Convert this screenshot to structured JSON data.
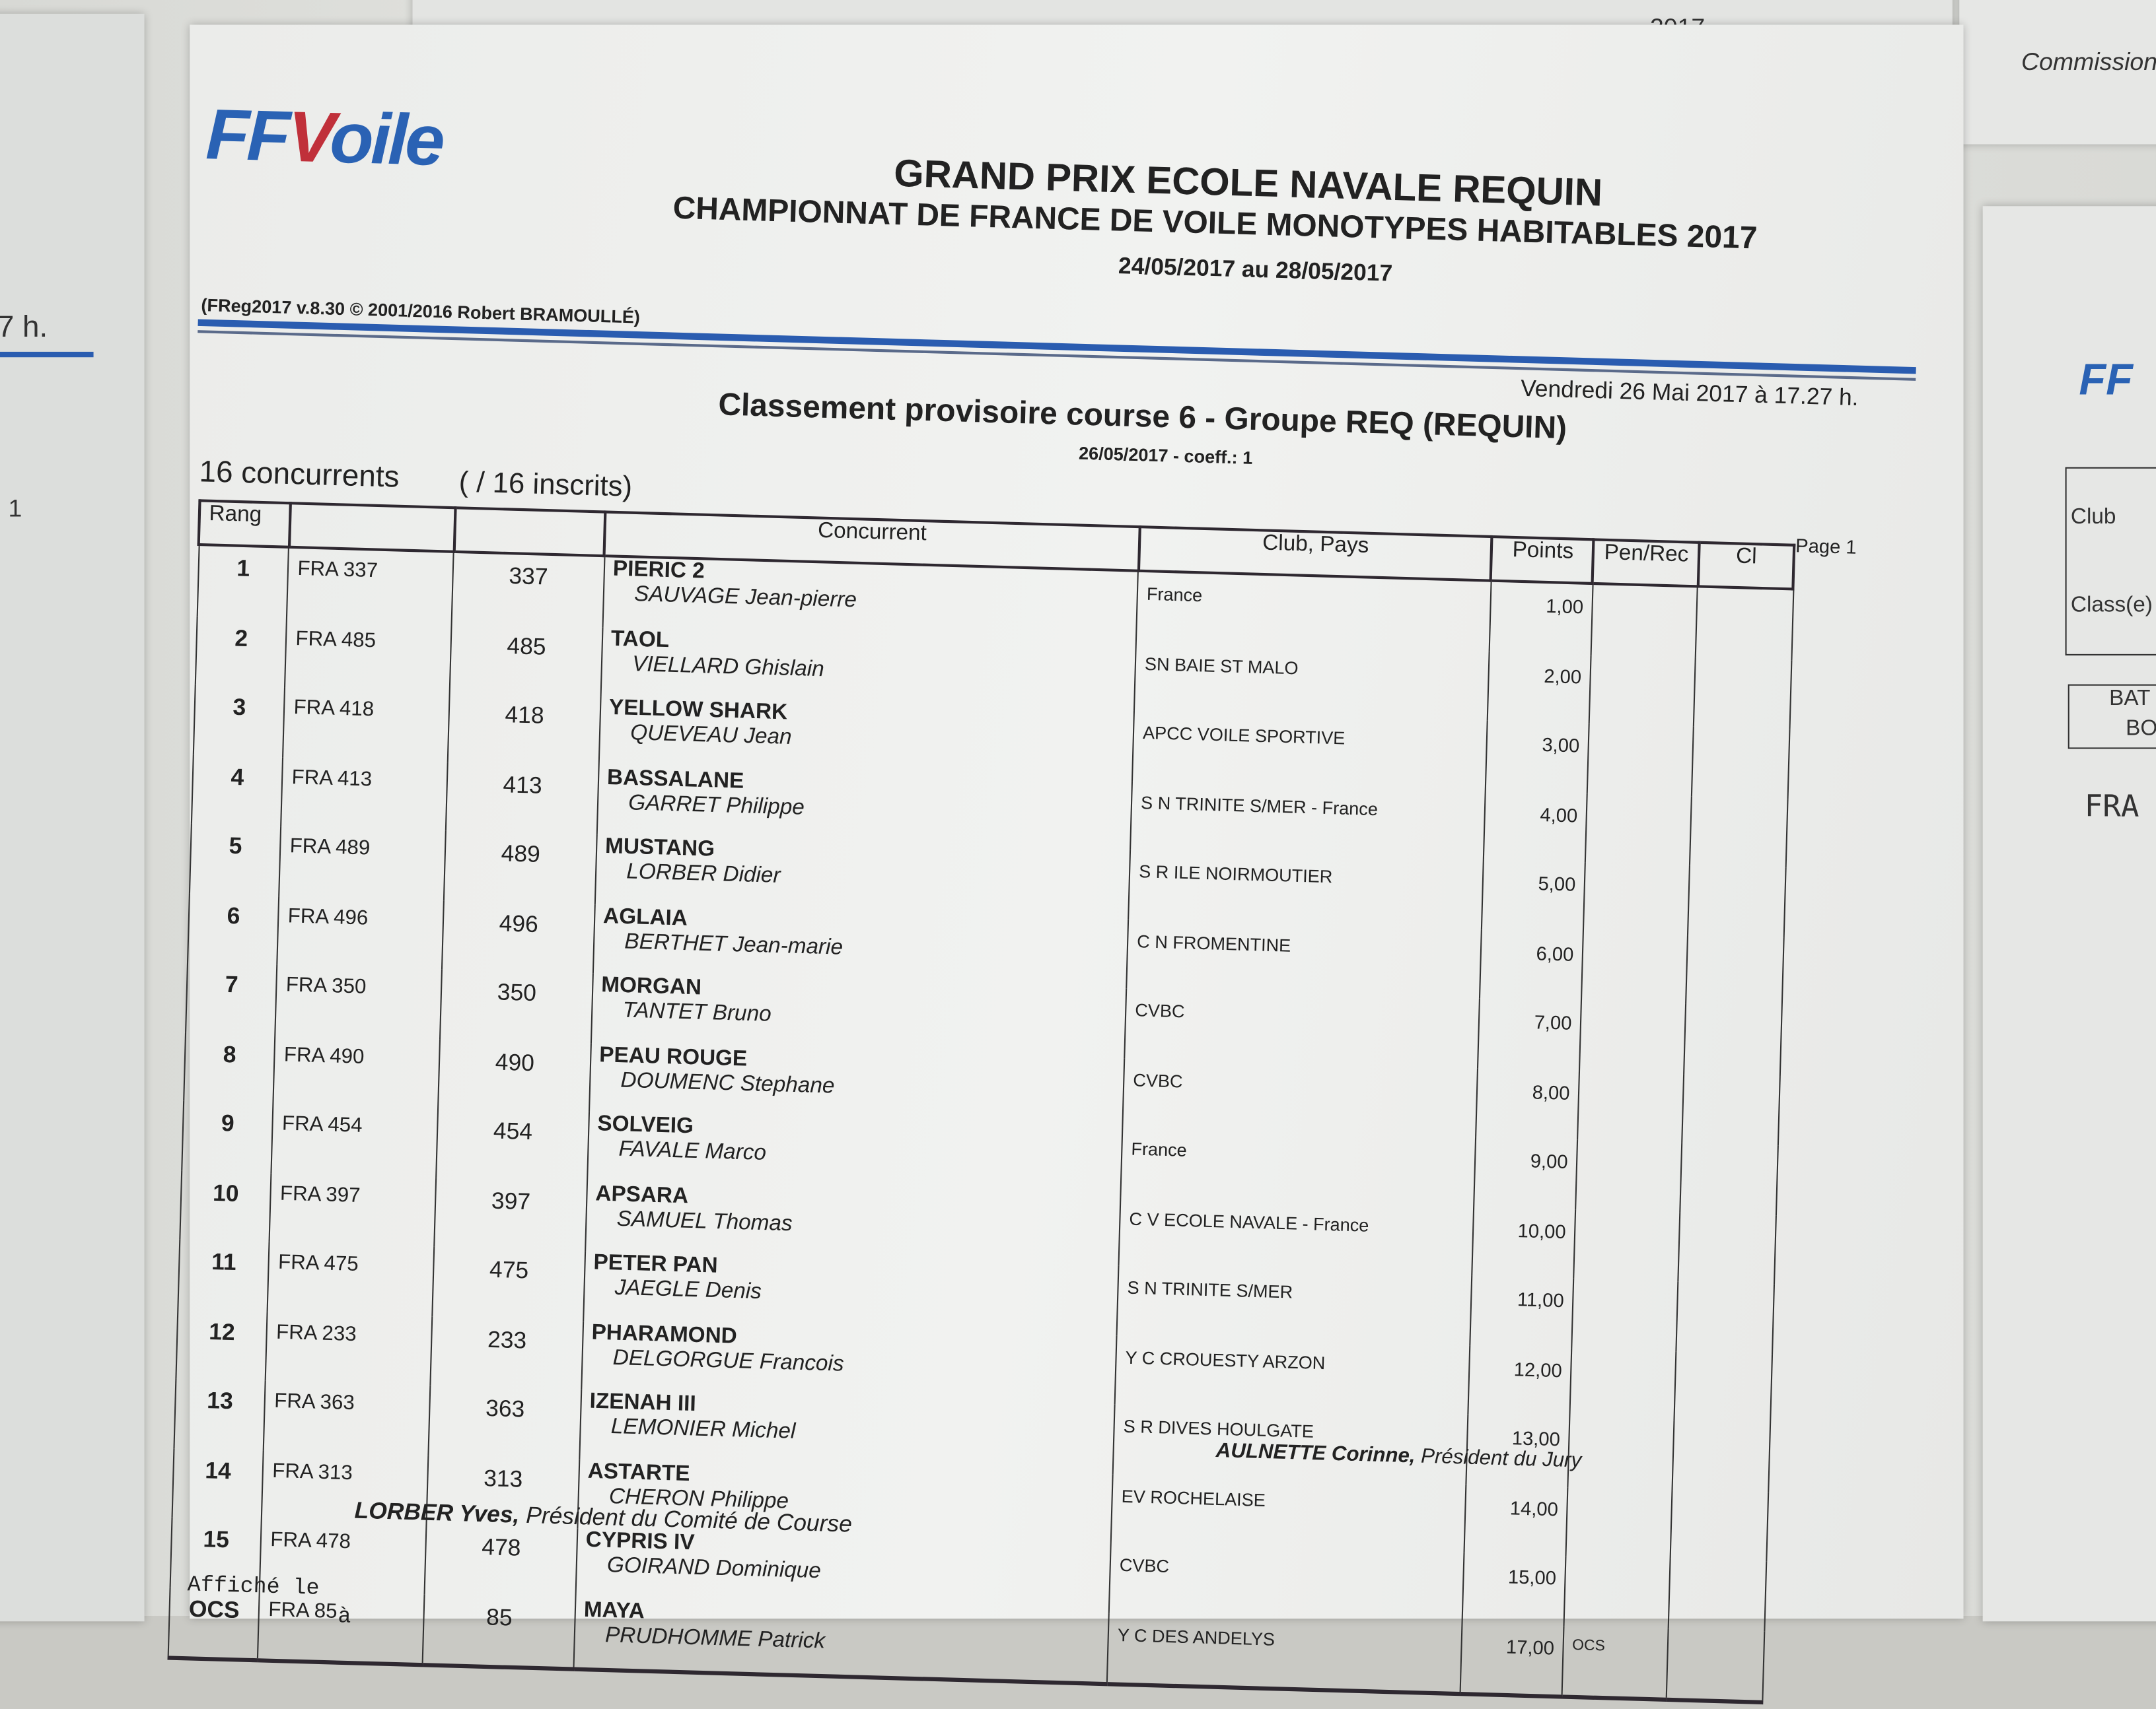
{
  "background_sheets": {
    "left": {
      "text1": "7 h.",
      "text2": "1"
    },
    "top": {
      "year": "2017"
    },
    "right_top": {
      "text": "Commission"
    },
    "right": {
      "logo": "FF",
      "club_label": "Club",
      "class_label": "Class(e)",
      "col1": "BAT",
      "col2": "BO",
      "handwritten": "FRA"
    }
  },
  "header": {
    "logo": "FFVoile",
    "title1": "GRAND PRIX ECOLE NAVALE     REQUIN",
    "title2": "CHAMPIONNAT DE FRANCE DE VOILE MONOTYPES HABITABLES  2017",
    "dates": "24/05/2017 au 28/05/2017",
    "software": "(FReg2017 v.8.30 © 2001/2016 Robert BRAMOULLÉ)",
    "timestamp": "Vendredi 26 Mai 2017 à 17.27 h.",
    "subtitle": "Classement provisoire course 6 - Groupe REQ (REQUIN)",
    "subdate": "26/05/2017 - coeff.: 1",
    "count": "16 concurrents",
    "registered": "( / 16 inscrits)",
    "page": "Page 1",
    "accent_color": "#2a5cb0"
  },
  "table": {
    "columns": [
      "Rang",
      "",
      "",
      "Concurrent",
      "Club, Pays",
      "Points",
      "Pen/Rec",
      "Cl"
    ],
    "rows": [
      {
        "rank": "1",
        "sail": "FRA  337",
        "num": "337",
        "boat": "PIERIC 2",
        "skipper": "SAUVAGE Jean-pierre",
        "club": "France",
        "points": "1,00",
        "pen": ""
      },
      {
        "rank": "2",
        "sail": "FRA  485",
        "num": "485",
        "boat": "TAOL",
        "skipper": "VIELLARD Ghislain",
        "club": "SN BAIE ST MALO",
        "points": "2,00",
        "pen": ""
      },
      {
        "rank": "3",
        "sail": "FRA  418",
        "num": "418",
        "boat": "YELLOW SHARK",
        "skipper": "QUEVEAU Jean",
        "club": "APCC VOILE SPORTIVE",
        "points": "3,00",
        "pen": ""
      },
      {
        "rank": "4",
        "sail": "FRA  413",
        "num": "413",
        "boat": "BASSALANE",
        "skipper": "GARRET Philippe",
        "club": "S N TRINITE S/MER - France",
        "points": "4,00",
        "pen": ""
      },
      {
        "rank": "5",
        "sail": "FRA  489",
        "num": "489",
        "boat": "MUSTANG",
        "skipper": "LORBER Didier",
        "club": "S R ILE NOIRMOUTIER",
        "points": "5,00",
        "pen": ""
      },
      {
        "rank": "6",
        "sail": "FRA  496",
        "num": "496",
        "boat": "AGLAIA",
        "skipper": "BERTHET Jean-marie",
        "club": "C N FROMENTINE",
        "points": "6,00",
        "pen": ""
      },
      {
        "rank": "7",
        "sail": "FRA  350",
        "num": "350",
        "boat": "MORGAN",
        "skipper": "TANTET Bruno",
        "club": "CVBC",
        "points": "7,00",
        "pen": ""
      },
      {
        "rank": "8",
        "sail": "FRA  490",
        "num": "490",
        "boat": "PEAU ROUGE",
        "skipper": "DOUMENC Stephane",
        "club": "CVBC",
        "points": "8,00",
        "pen": ""
      },
      {
        "rank": "9",
        "sail": "FRA  454",
        "num": "454",
        "boat": "SOLVEIG",
        "skipper": "FAVALE Marco",
        "club": "France",
        "points": "9,00",
        "pen": ""
      },
      {
        "rank": "10",
        "sail": "FRA  397",
        "num": "397",
        "boat": "APSARA",
        "skipper": "SAMUEL Thomas",
        "club": "C V ECOLE NAVALE - France",
        "points": "10,00",
        "pen": ""
      },
      {
        "rank": "11",
        "sail": "FRA  475",
        "num": "475",
        "boat": "PETER PAN",
        "skipper": "JAEGLE Denis",
        "club": "S N TRINITE S/MER",
        "points": "11,00",
        "pen": ""
      },
      {
        "rank": "12",
        "sail": "FRA  233",
        "num": "233",
        "boat": "PHARAMOND",
        "skipper": "DELGORGUE Francois",
        "club": "Y C CROUESTY ARZON",
        "points": "12,00",
        "pen": ""
      },
      {
        "rank": "13",
        "sail": "FRA  363",
        "num": "363",
        "boat": "IZENAH III",
        "skipper": "LEMONIER Michel",
        "club": "S R DIVES HOULGATE",
        "points": "13,00",
        "pen": ""
      },
      {
        "rank": "14",
        "sail": "FRA  313",
        "num": "313",
        "boat": "ASTARTE",
        "skipper": "CHERON Philippe",
        "club": "EV ROCHELAISE",
        "points": "14,00",
        "pen": ""
      },
      {
        "rank": "15",
        "sail": "FRA  478",
        "num": "478",
        "boat": "CYPRIS IV",
        "skipper": "GOIRAND Dominique",
        "club": "CVBC",
        "points": "15,00",
        "pen": ""
      },
      {
        "rank": "OCS",
        "sail": "FRA  85",
        "num": "85",
        "boat": "MAYA",
        "skipper": "PRUDHOMME Patrick",
        "club": "Y C DES ANDELYS",
        "points": "17,00",
        "pen": "OCS"
      }
    ]
  },
  "footer": {
    "jury": "AULNETTE Corinne,",
    "jury_role": "Président du Jury",
    "committee": "LORBER Yves,",
    "committee_role": "Président du Comité de Course",
    "posted": "Affiché le",
    "posted_at": "à"
  }
}
